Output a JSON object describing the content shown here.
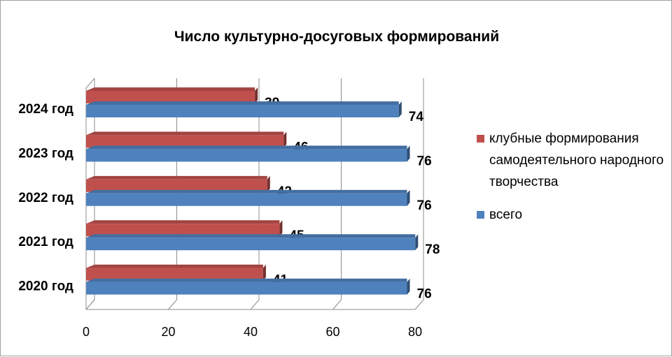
{
  "chart_data": {
    "type": "bar",
    "orientation": "horizontal",
    "style": "3d",
    "title": "Число культурно-досуговых формирований",
    "categories": [
      "2020 год",
      "2021 год",
      "2022 год",
      "2023 год",
      "2024 год"
    ],
    "series": [
      {
        "name": "клубные формирования самодеятельного народного творчества",
        "values": [
          41,
          45,
          42,
          46,
          39
        ],
        "color": "#C0504D"
      },
      {
        "name": "всего",
        "values": [
          76,
          78,
          76,
          76,
          74
        ],
        "color": "#4F81BD"
      }
    ],
    "xlim": [
      0,
      80
    ],
    "xticks": [
      "0",
      "20",
      "40",
      "60",
      "80"
    ],
    "grid": true,
    "legend_position": "right",
    "data_labels": true
  },
  "legend": {
    "items": [
      {
        "text": "клубные формирования самодеятельного народного творчества",
        "color": "#C0504D"
      },
      {
        "text": "всего",
        "color": "#4F81BD"
      }
    ]
  }
}
